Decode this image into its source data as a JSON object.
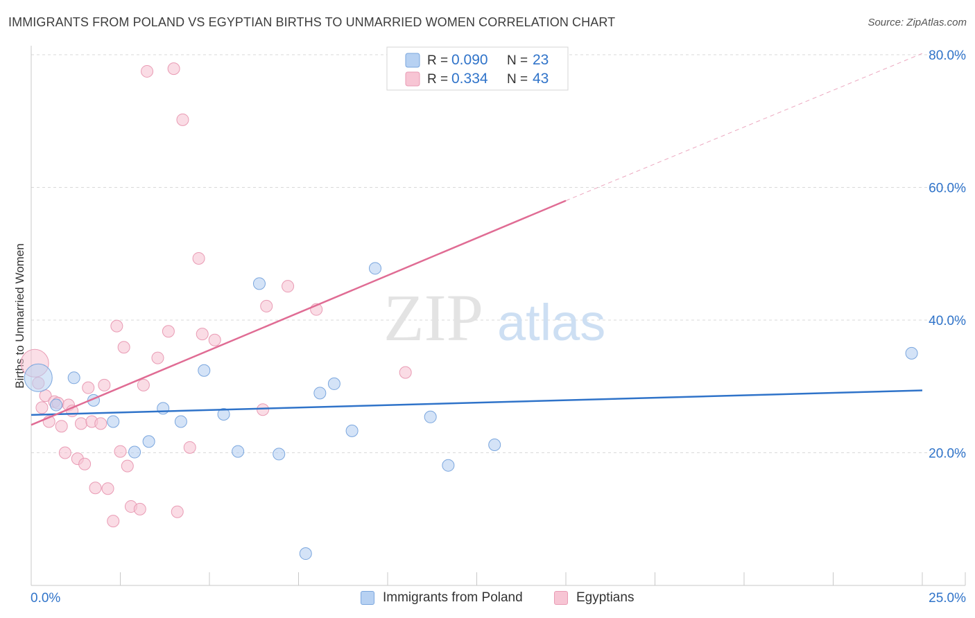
{
  "title": "IMMIGRANTS FROM POLAND VS EGYPTIAN BIRTHS TO UNMARRIED WOMEN CORRELATION CHART",
  "source": "Source: ZipAtlas.com",
  "watermark": {
    "zip": "ZIP",
    "atlas": "atlas"
  },
  "legend_top": {
    "rows": [
      {
        "r_label": "R = ",
        "r_value": "0.090",
        "n_label": "N = ",
        "n_value": "23"
      },
      {
        "r_label": "R = ",
        "r_value": "0.334",
        "n_label": "N = ",
        "n_value": "43"
      }
    ]
  },
  "legend_bottom": [
    "Immigrants from Poland",
    "Egyptians"
  ],
  "colors": {
    "blue_fill": "#b7d1f2",
    "blue_stroke": "#7aa6de",
    "blue_line": "#2f73c9",
    "pink_fill": "#f7c5d4",
    "pink_stroke": "#e99bb4",
    "pink_line": "#e06c94",
    "value_text": "#2f73c9",
    "grid": "#d8d8d8",
    "axis": "#c8c8c8"
  },
  "chart_data": {
    "type": "scatter",
    "title": "IMMIGRANTS FROM POLAND VS EGYPTIAN BIRTHS TO UNMARRIED WOMEN CORRELATION CHART",
    "xlabel": "",
    "ylabel": "Births to Unmarried Women",
    "xlim": [
      0,
      25
    ],
    "ylim": [
      0,
      80
    ],
    "x_tick_labels": [
      "0.0%",
      "25.0%"
    ],
    "y_tick_labels": [
      "20.0%",
      "40.0%",
      "60.0%",
      "80.0%"
    ],
    "y_ticks": [
      20,
      40,
      60,
      80
    ],
    "series": [
      {
        "name": "Immigrants from Poland",
        "r": 0.09,
        "n": 23,
        "trend": {
          "x": [
            0,
            25
          ],
          "y": [
            25.7,
            29.4
          ]
        },
        "points": [
          {
            "x": 0.2,
            "y": 31.3,
            "big": true
          },
          {
            "x": 0.7,
            "y": 27.2
          },
          {
            "x": 1.2,
            "y": 31.3
          },
          {
            "x": 1.75,
            "y": 27.9
          },
          {
            "x": 2.3,
            "y": 24.7
          },
          {
            "x": 2.9,
            "y": 20.1
          },
          {
            "x": 3.3,
            "y": 21.7
          },
          {
            "x": 3.7,
            "y": 26.7
          },
          {
            "x": 4.2,
            "y": 24.7
          },
          {
            "x": 4.85,
            "y": 32.4
          },
          {
            "x": 5.4,
            "y": 25.8
          },
          {
            "x": 5.8,
            "y": 20.2
          },
          {
            "x": 6.4,
            "y": 45.5
          },
          {
            "x": 6.95,
            "y": 19.8
          },
          {
            "x": 8.1,
            "y": 29.0
          },
          {
            "x": 8.5,
            "y": 30.4
          },
          {
            "x": 9.0,
            "y": 23.3
          },
          {
            "x": 9.65,
            "y": 47.8
          },
          {
            "x": 11.2,
            "y": 25.4
          },
          {
            "x": 11.7,
            "y": 18.1
          },
          {
            "x": 13.0,
            "y": 21.2
          },
          {
            "x": 24.7,
            "y": 35.0
          },
          {
            "x": 7.7,
            "y": 4.8
          }
        ]
      },
      {
        "name": "Egyptians",
        "r": 0.334,
        "n": 43,
        "trend": {
          "x": [
            0,
            15
          ],
          "y": [
            24.2,
            58.0
          ]
        },
        "trend_dashed": {
          "x": [
            15,
            25
          ],
          "y": [
            58.0,
            80.2
          ]
        },
        "points": [
          {
            "x": 0.1,
            "y": 33.5,
            "big": true
          },
          {
            "x": 0.2,
            "y": 30.5
          },
          {
            "x": 0.3,
            "y": 26.8
          },
          {
            "x": 0.4,
            "y": 28.6
          },
          {
            "x": 0.5,
            "y": 24.7
          },
          {
            "x": 0.65,
            "y": 27.7
          },
          {
            "x": 0.75,
            "y": 27.5
          },
          {
            "x": 0.85,
            "y": 24.0
          },
          {
            "x": 0.95,
            "y": 20.0
          },
          {
            "x": 1.05,
            "y": 27.2
          },
          {
            "x": 1.15,
            "y": 26.3
          },
          {
            "x": 1.3,
            "y": 19.1
          },
          {
            "x": 1.4,
            "y": 24.4
          },
          {
            "x": 1.5,
            "y": 18.3
          },
          {
            "x": 1.6,
            "y": 29.8
          },
          {
            "x": 1.7,
            "y": 24.7
          },
          {
            "x": 1.8,
            "y": 14.7
          },
          {
            "x": 1.95,
            "y": 24.4
          },
          {
            "x": 2.05,
            "y": 30.2
          },
          {
            "x": 2.15,
            "y": 14.6
          },
          {
            "x": 2.3,
            "y": 9.7
          },
          {
            "x": 2.4,
            "y": 39.1
          },
          {
            "x": 2.5,
            "y": 20.2
          },
          {
            "x": 2.6,
            "y": 35.9
          },
          {
            "x": 2.7,
            "y": 18.0
          },
          {
            "x": 2.8,
            "y": 11.9
          },
          {
            "x": 3.05,
            "y": 11.5
          },
          {
            "x": 3.15,
            "y": 30.2
          },
          {
            "x": 3.25,
            "y": 77.5
          },
          {
            "x": 3.55,
            "y": 34.3
          },
          {
            "x": 3.85,
            "y": 38.3
          },
          {
            "x": 4.0,
            "y": 77.9
          },
          {
            "x": 4.1,
            "y": 11.1
          },
          {
            "x": 4.25,
            "y": 70.2
          },
          {
            "x": 4.45,
            "y": 20.8
          },
          {
            "x": 4.7,
            "y": 49.3
          },
          {
            "x": 4.8,
            "y": 37.9
          },
          {
            "x": 5.15,
            "y": 37.0
          },
          {
            "x": 6.5,
            "y": 26.5
          },
          {
            "x": 6.6,
            "y": 42.1
          },
          {
            "x": 7.2,
            "y": 45.1
          },
          {
            "x": 8.0,
            "y": 41.6
          },
          {
            "x": 10.5,
            "y": 32.1
          }
        ]
      }
    ]
  }
}
